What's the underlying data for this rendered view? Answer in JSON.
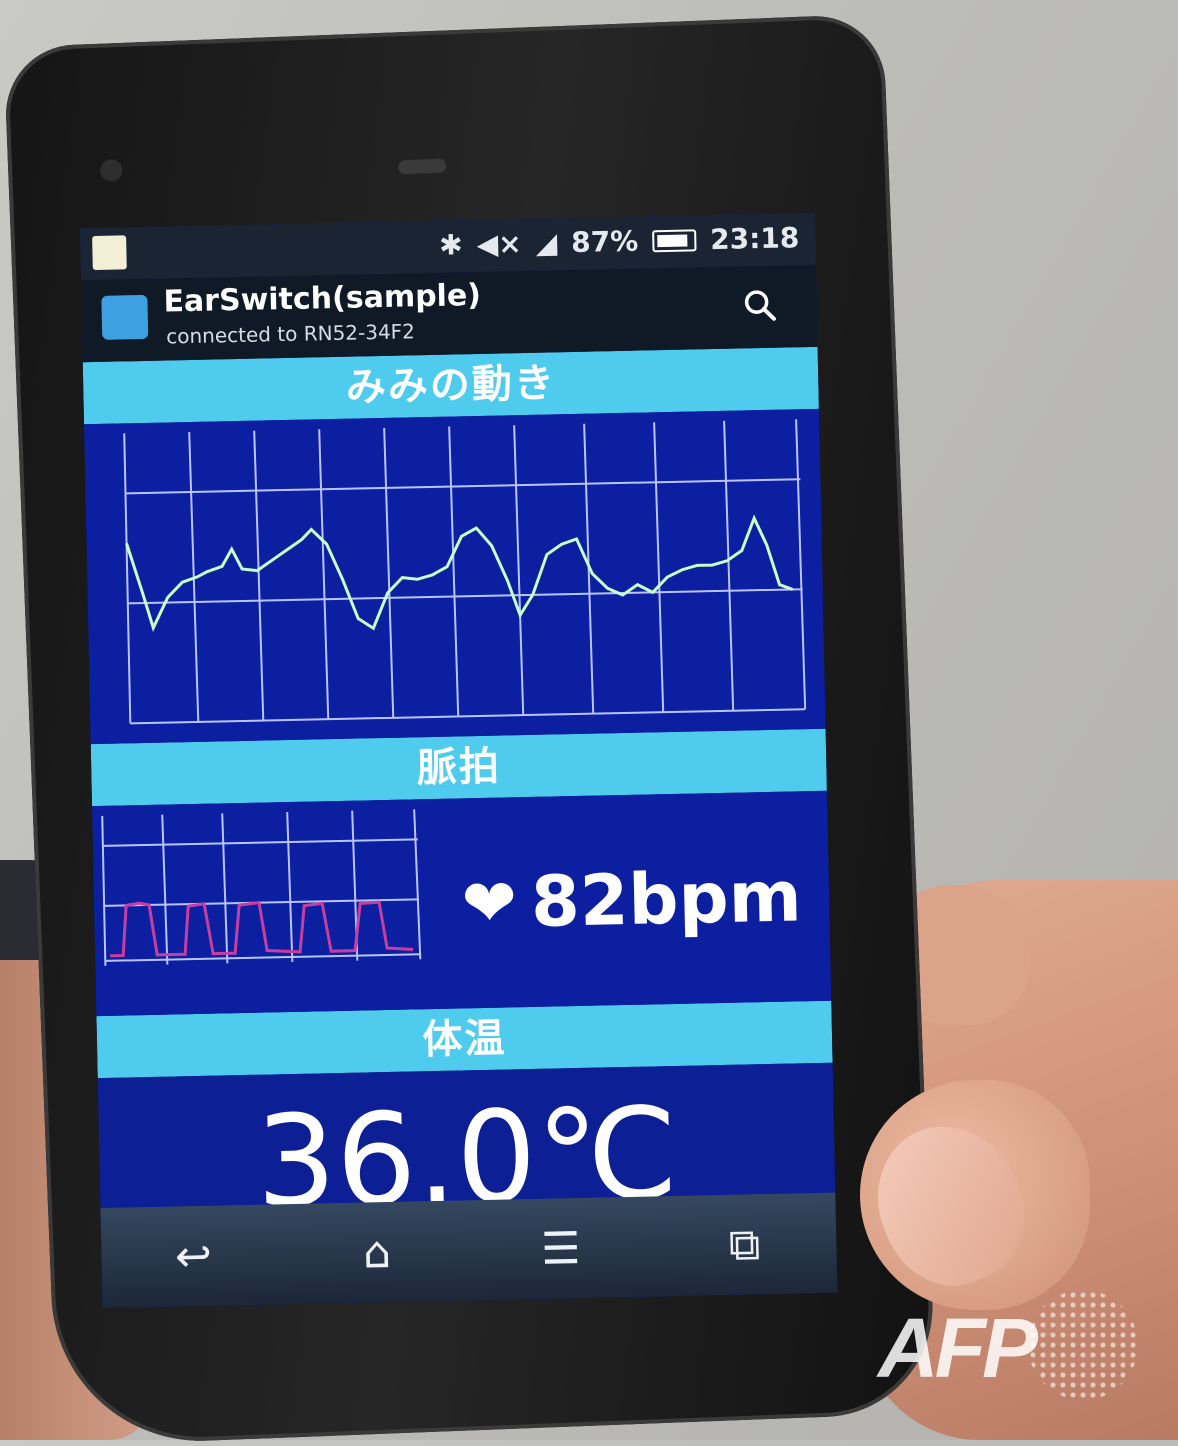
{
  "status_bar": {
    "battery": "87%",
    "time": "23:18"
  },
  "app_bar": {
    "title": "EarSwitch(sample)",
    "subtitle": "connected to RN52-34F2"
  },
  "sections": {
    "ear_movement": "みみの動き",
    "pulse": "脈拍",
    "temperature": "体温"
  },
  "pulse_reading": {
    "heart_symbol": "❤",
    "value": "82bpm"
  },
  "temperature_reading": "36.0℃",
  "nav_icons": [
    "back-icon",
    "home-icon",
    "menu-icon",
    "recent-apps-icon"
  ],
  "colors": {
    "header": "#4fcbee",
    "chart_bg": "#0b1fa0",
    "ear_line": "#c8ffc8",
    "pulse_line": "#c63fa0"
  },
  "watermark": "AFP"
}
